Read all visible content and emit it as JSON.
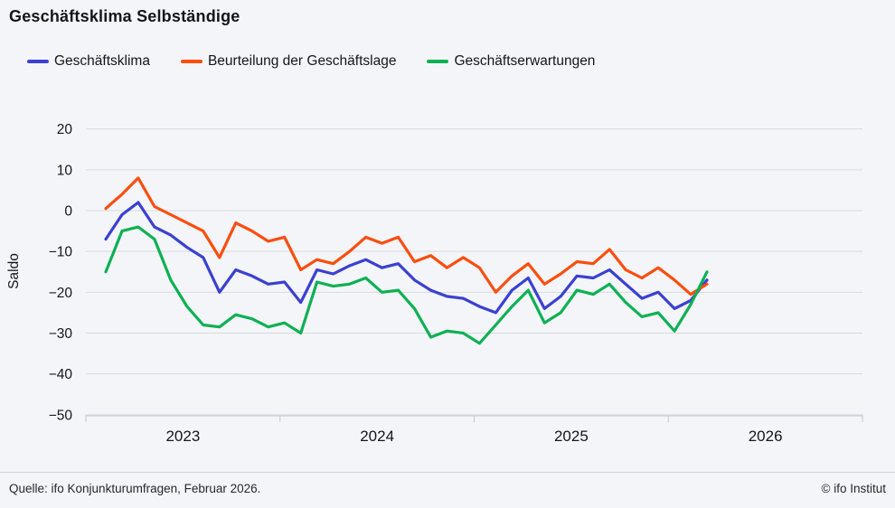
{
  "title": "Geschäftsklima Selbständige",
  "footer": {
    "source": "Quelle: ifo Konjunkturumfragen, Februar 2026.",
    "copyright": "© ifo Institut"
  },
  "chart_data": {
    "type": "line",
    "title": "Geschäftsklima Selbständige",
    "ylabel": "Saldo",
    "xlabel": "",
    "ylim": [
      -50,
      20
    ],
    "grid": "horizontal",
    "legend_position": "top",
    "background": "#f4f5f9",
    "gridline_color": "#d9dade",
    "axis_color": "#c6c7ce",
    "text_color": "#14161a",
    "yticks": [
      20,
      10,
      0,
      -10,
      -20,
      -30,
      -40,
      -50
    ],
    "ytick_labels": [
      "20",
      "10",
      "0",
      "−10",
      "−20",
      "−30",
      "−40",
      "−50"
    ],
    "year_labels": [
      "2023",
      "2024",
      "2025",
      "2026"
    ],
    "x": [
      "2023-01",
      "2023-02",
      "2023-03",
      "2023-04",
      "2023-05",
      "2023-06",
      "2023-07",
      "2023-08",
      "2023-09",
      "2023-10",
      "2023-11",
      "2023-12",
      "2024-01",
      "2024-02",
      "2024-03",
      "2024-04",
      "2024-05",
      "2024-06",
      "2024-07",
      "2024-08",
      "2024-09",
      "2024-10",
      "2024-11",
      "2024-12",
      "2025-01",
      "2025-02",
      "2025-03",
      "2025-04",
      "2025-05",
      "2025-06",
      "2025-07",
      "2025-08",
      "2025-09",
      "2025-10",
      "2025-11",
      "2025-12",
      "2026-01",
      "2026-02"
    ],
    "series": [
      {
        "name": "Geschäftsklima",
        "color": "#3b40d1",
        "values": [
          -7,
          -1,
          2,
          -4,
          -6,
          -9,
          -11.5,
          -20,
          -14.5,
          -16,
          -18,
          -17.5,
          -22.5,
          -14.5,
          -15.5,
          -13.5,
          -12,
          -14,
          -13,
          -17,
          -19.5,
          -21,
          -21.5,
          -23.5,
          -25,
          -19.5,
          -16.5,
          -24,
          -21,
          -16,
          -16.5,
          -14.5,
          -18,
          -21.5,
          -20,
          -24,
          -22,
          -17
        ]
      },
      {
        "name": "Beurteilung der Geschäftslage",
        "color": "#fa4e0e",
        "values": [
          0.5,
          4,
          8,
          1,
          -1,
          -3,
          -5,
          -11.5,
          -3,
          -5,
          -7.5,
          -6.5,
          -14.5,
          -12,
          -13,
          -10,
          -6.5,
          -8,
          -6.5,
          -12.5,
          -11,
          -14,
          -11.5,
          -14,
          -20,
          -16,
          -13,
          -18,
          -15.5,
          -12.5,
          -13,
          -9.5,
          -14.5,
          -16.5,
          -14,
          -17,
          -20.5,
          -18
        ]
      },
      {
        "name": "Geschäftserwartungen",
        "color": "#0db153",
        "values": [
          -15,
          -5,
          -4,
          -7,
          -17,
          -23.5,
          -28,
          -28.5,
          -25.5,
          -26.5,
          -28.5,
          -27.5,
          -30,
          -17.5,
          -18.5,
          -18,
          -16.5,
          -20,
          -19.5,
          -24,
          -31,
          -29.5,
          -30,
          -32.5,
          -28,
          -23.5,
          -19.5,
          -27.5,
          -25,
          -19.5,
          -20.5,
          -18,
          -22.5,
          -26,
          -25,
          -29.5,
          -23,
          -15
        ]
      }
    ]
  }
}
